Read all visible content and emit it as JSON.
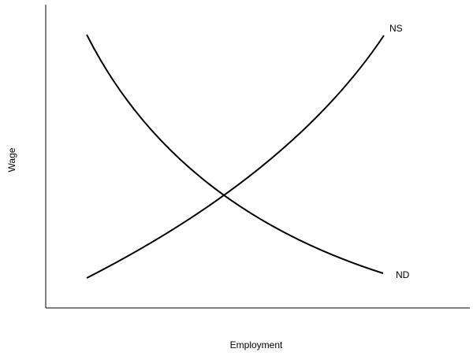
{
  "diagram": {
    "xlabel": "Employment",
    "ylabel": "Wage",
    "curves": [
      {
        "name": "NS",
        "kind": "supply",
        "slope": "upward"
      },
      {
        "name": "ND",
        "kind": "demand",
        "slope": "downward"
      }
    ],
    "line_color": "#000000",
    "background": "#ffffff"
  }
}
